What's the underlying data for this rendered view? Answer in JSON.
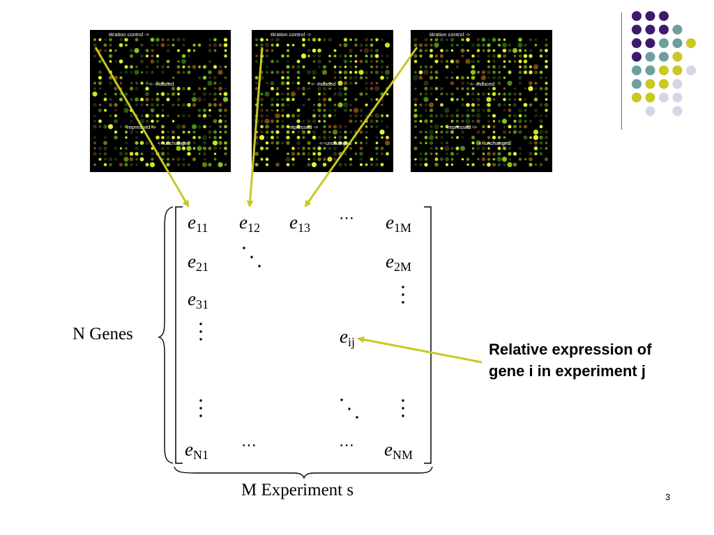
{
  "colors": {
    "arrow": "#c8c823",
    "dot_purple": "#3d1a6b",
    "dot_teal": "#6f9e9e",
    "dot_yellow": "#c9c91e",
    "dot_lavender": "#d6d6e6"
  },
  "dot_grid": [
    [
      "purple",
      "purple",
      "purple",
      "",
      "",
      ""
    ],
    [
      "purple",
      "purple",
      "purple",
      "teal",
      "",
      ""
    ],
    [
      "purple",
      "purple",
      "teal",
      "teal",
      "yellow",
      ""
    ],
    [
      "purple",
      "teal",
      "teal",
      "yellow",
      "",
      ""
    ],
    [
      "teal",
      "teal",
      "yellow",
      "yellow",
      "lavender",
      ""
    ],
    [
      "teal",
      "yellow",
      "yellow",
      "lavender",
      "",
      ""
    ],
    [
      "yellow",
      "yellow",
      "lavender",
      "lavender",
      "",
      ""
    ],
    [
      "",
      "lavender",
      "",
      "lavender",
      "",
      ""
    ]
  ],
  "panels": [
    {
      "titration": "titration control ->",
      "induced": "<- induced",
      "repressed": "repressed ->",
      "unchanged": "<- unchanged"
    },
    {
      "titration": "titration control ->",
      "induced": "<- induced",
      "repressed": "repressed ->",
      "unchanged": "<- unchanged"
    },
    {
      "titration": "titration control ->",
      "induced": "<- induced",
      "repressed": "repressed ->",
      "unchanged": "<- unchanged"
    }
  ],
  "matrix": {
    "var": "e",
    "e11": "11",
    "e12": "12",
    "e13": "13",
    "e1M": "1M",
    "e21": "21",
    "e2M": "2M",
    "e31": "31",
    "eij": "ij",
    "eN1": "N1",
    "eNM": "NM",
    "hdots": "⋯"
  },
  "labels": {
    "genes": "N Genes",
    "experiments": "M Experiment s",
    "callout": "Relative expression of gene i in experiment j",
    "slide_number": "3"
  }
}
